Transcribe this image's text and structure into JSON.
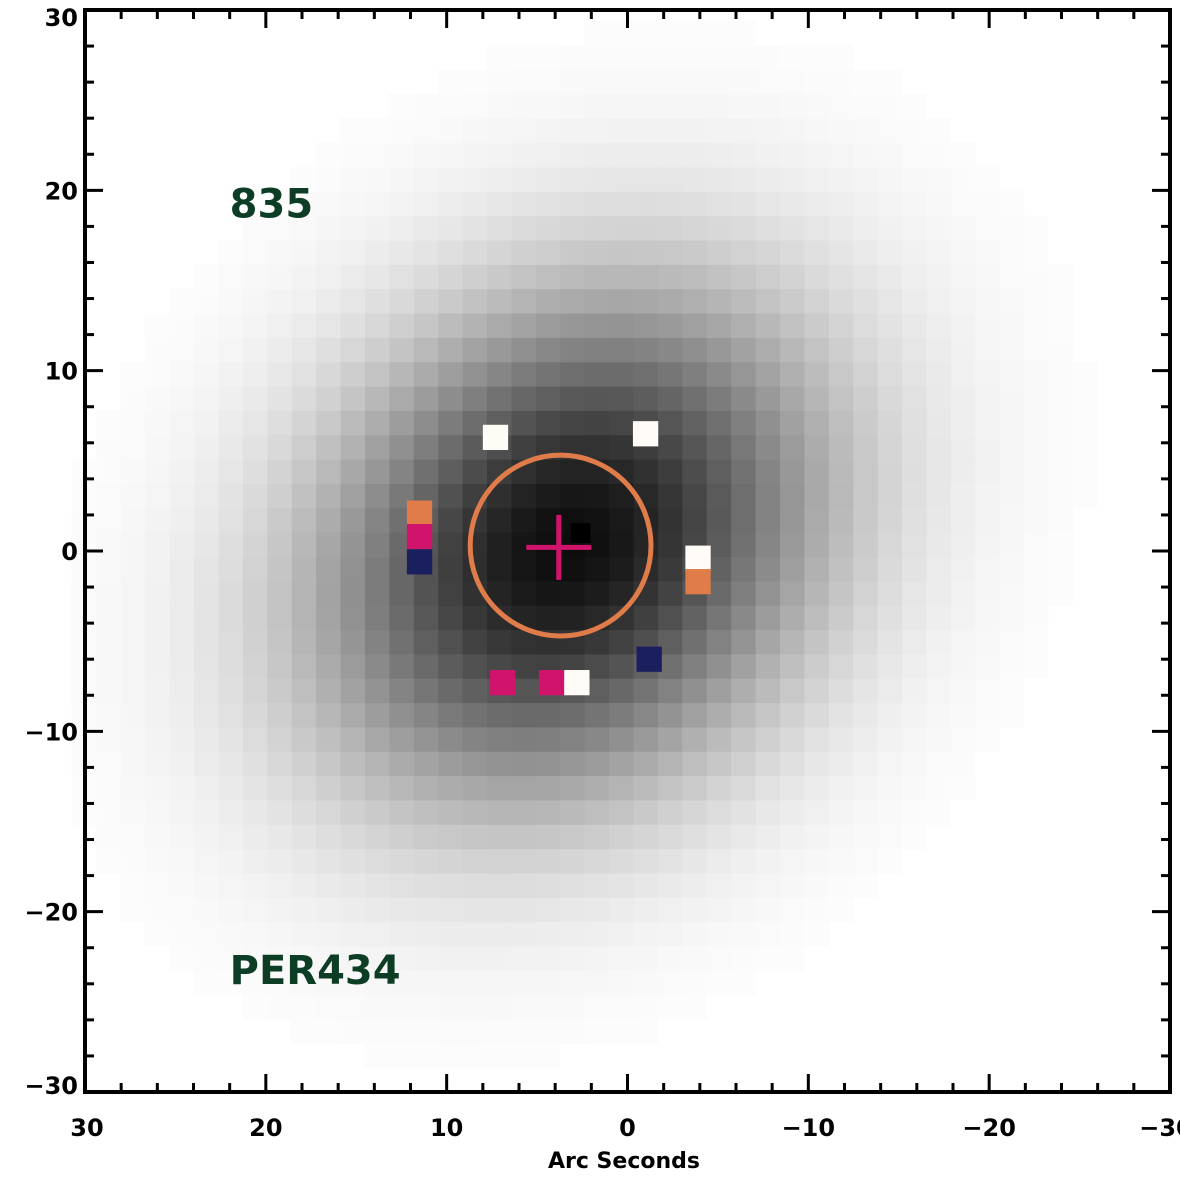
{
  "chart_data": {
    "type": "heatmap",
    "title": "",
    "xlabel": "Arc Seconds",
    "ylabel": "",
    "xlim": [
      30,
      -30
    ],
    "ylim": [
      -30,
      30
    ],
    "x_major_ticks": [
      30,
      20,
      10,
      0,
      -10,
      -20,
      -30
    ],
    "y_major_ticks": [
      30,
      20,
      10,
      0,
      -10,
      -20,
      -30
    ],
    "x_tick_labels": [
      "30",
      "20",
      "10",
      "0",
      "−10",
      "−20",
      "−30"
    ],
    "y_tick_labels": [
      "30",
      "20",
      "10",
      "0",
      "−10",
      "−20",
      "−30"
    ],
    "minor_tick_step": 2,
    "annotations": [
      {
        "text": "835",
        "x": 22,
        "y": 18.5
      },
      {
        "text": "PER434",
        "x": 22,
        "y": -24
      }
    ],
    "colormap": "inverted grayscale",
    "emission_blob": {
      "center": [
        3.3,
        0.3
      ],
      "sigma_major": 10.5,
      "sigma_minor": 8.5,
      "pixel_size": 1.35,
      "peak_intensity": 0.95
    },
    "peak_pixel": {
      "x": 2.6,
      "y": 1.0
    },
    "aperture_circle": {
      "center": [
        3.7,
        0.3
      ],
      "radius": 5.0,
      "color": "#E07B4A"
    },
    "center_cross": {
      "x": 3.8,
      "y": 0.2,
      "half_length": 1.8,
      "color": "#D0146C"
    },
    "colored_pixels": [
      {
        "x": 7.3,
        "y": 6.3,
        "color": "#FFFCF7"
      },
      {
        "x": -1.0,
        "y": 6.5,
        "color": "#FFFCF7"
      },
      {
        "x": 11.5,
        "y": 2.1,
        "color": "#E07B4A"
      },
      {
        "x": 11.5,
        "y": 0.8,
        "color": "#D0146C"
      },
      {
        "x": 11.5,
        "y": -0.6,
        "color": "#1A1F5E"
      },
      {
        "x": -3.9,
        "y": -0.4,
        "color": "#FFFCF7"
      },
      {
        "x": -3.9,
        "y": -1.7,
        "color": "#E07B4A"
      },
      {
        "x": -1.2,
        "y": -6.0,
        "color": "#1A1F5E"
      },
      {
        "x": 6.9,
        "y": -7.3,
        "color": "#D0146C"
      },
      {
        "x": 4.2,
        "y": -7.3,
        "color": "#D0146C"
      },
      {
        "x": 2.8,
        "y": -7.3,
        "color": "#FFFCF7"
      }
    ],
    "colors": {
      "frame": "#000000",
      "annotation": "#0E3D25"
    }
  }
}
